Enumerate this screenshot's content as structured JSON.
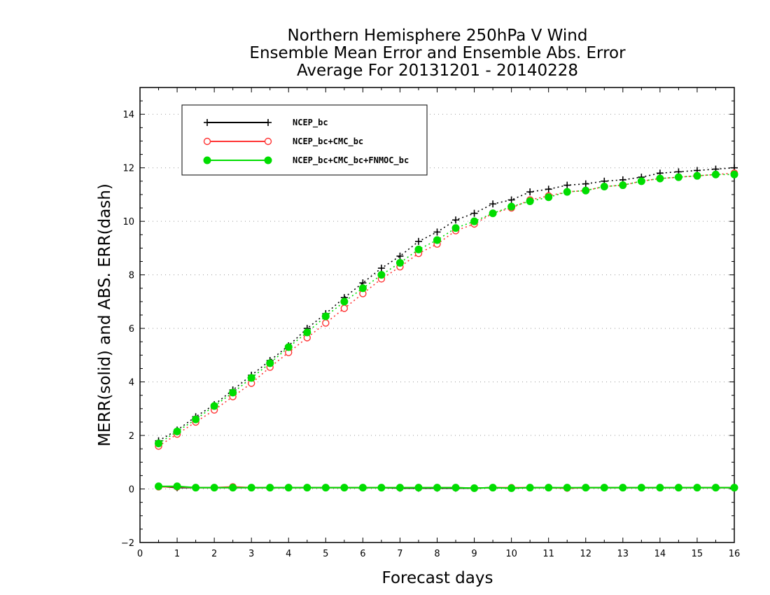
{
  "chart_data": {
    "type": "line",
    "title": [
      "Northern Hemisphere 250hPa V Wind",
      "Ensemble Mean Error and Ensemble Abs. Error",
      "Average For 20131201 - 20140228"
    ],
    "xlabel": "Forecast days",
    "ylabel": "MERR(solid) and ABS. ERR(dash)",
    "xlim": [
      0,
      16
    ],
    "ylim": [
      -2,
      15
    ],
    "xticks": [
      0,
      1,
      2,
      3,
      4,
      5,
      6,
      7,
      8,
      9,
      10,
      11,
      12,
      13,
      14,
      15,
      16
    ],
    "yticks": [
      -2,
      0,
      2,
      4,
      6,
      8,
      10,
      12,
      14
    ],
    "grid": "horizontal dotted",
    "legend_position": "top-left",
    "x": [
      0.5,
      1,
      1.5,
      2,
      2.5,
      3,
      3.5,
      4,
      4.5,
      5,
      5.5,
      6,
      6.5,
      7,
      7.5,
      8,
      8.5,
      9,
      9.5,
      10,
      10.5,
      11,
      11.5,
      12,
      12.5,
      13,
      13.5,
      14,
      14.5,
      15,
      15.5,
      16
    ],
    "series": [
      {
        "name": "NCEP_bc",
        "color": "#000000",
        "marker": "plus",
        "abs_err": [
          1.8,
          2.2,
          2.7,
          3.15,
          3.7,
          4.25,
          4.8,
          5.35,
          6.0,
          6.55,
          7.15,
          7.7,
          8.25,
          8.7,
          9.25,
          9.6,
          10.05,
          10.3,
          10.65,
          10.8,
          11.1,
          11.2,
          11.35,
          11.4,
          11.5,
          11.55,
          11.65,
          11.8,
          11.85,
          11.9,
          11.95,
          12.0
        ],
        "merr": [
          0.1,
          0.05,
          0.05,
          0.05,
          0.05,
          0.05,
          0.05,
          0.05,
          0.05,
          0.05,
          0.05,
          0.05,
          0.05,
          0.03,
          0.03,
          0.03,
          0.03,
          0.03,
          0.05,
          0.03,
          0.05,
          0.05,
          0.03,
          0.05,
          0.05,
          0.05,
          0.05,
          0.05,
          0.05,
          0.05,
          0.05,
          0.05
        ]
      },
      {
        "name": "NCEP_bc+CMC_bc",
        "color": "#ff3333",
        "marker": "open-circle",
        "abs_err": [
          1.6,
          2.05,
          2.5,
          2.95,
          3.45,
          3.95,
          4.55,
          5.1,
          5.65,
          6.2,
          6.75,
          7.3,
          7.85,
          8.3,
          8.8,
          9.15,
          9.65,
          9.9,
          10.3,
          10.5,
          10.8,
          10.95,
          11.1,
          11.15,
          11.3,
          11.35,
          11.5,
          11.6,
          11.65,
          11.7,
          11.75,
          11.8
        ],
        "merr": [
          0.08,
          0.08,
          0.05,
          0.05,
          0.08,
          0.05,
          0.05,
          0.05,
          0.05,
          0.05,
          0.05,
          0.05,
          0.05,
          0.05,
          0.05,
          0.05,
          0.05,
          0.03,
          0.05,
          0.05,
          0.05,
          0.05,
          0.03,
          0.05,
          0.05,
          0.05,
          0.05,
          0.05,
          0.05,
          0.05,
          0.05,
          0.05
        ]
      },
      {
        "name": "NCEP_bc+CMC_bc+FNMOC_bc",
        "color": "#00dd00",
        "marker": "filled-circle",
        "abs_err": [
          1.7,
          2.15,
          2.6,
          3.1,
          3.6,
          4.15,
          4.7,
          5.3,
          5.85,
          6.45,
          7.0,
          7.5,
          8.0,
          8.45,
          8.95,
          9.3,
          9.75,
          10.0,
          10.3,
          10.55,
          10.75,
          10.9,
          11.1,
          11.15,
          11.3,
          11.35,
          11.5,
          11.6,
          11.65,
          11.7,
          11.75,
          11.75
        ],
        "merr": [
          0.1,
          0.1,
          0.05,
          0.05,
          0.05,
          0.05,
          0.05,
          0.05,
          0.05,
          0.05,
          0.05,
          0.05,
          0.05,
          0.05,
          0.05,
          0.05,
          0.05,
          0.03,
          0.05,
          0.03,
          0.05,
          0.05,
          0.05,
          0.05,
          0.05,
          0.05,
          0.05,
          0.05,
          0.05,
          0.05,
          0.05,
          0.05
        ]
      }
    ]
  }
}
